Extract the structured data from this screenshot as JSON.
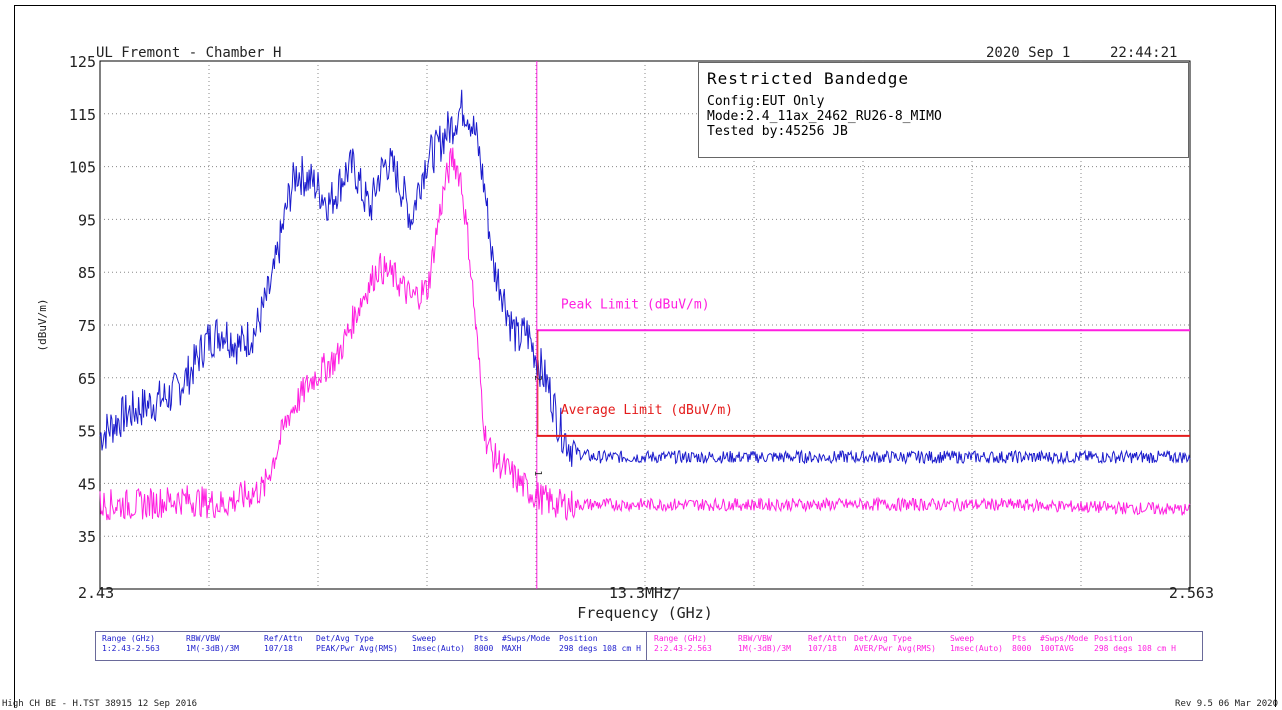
{
  "header": {
    "site": "UL Fremont - Chamber H",
    "date": "2020 Sep 1",
    "time": "22:44:21"
  },
  "info_box": {
    "title": "Restricted Bandedge",
    "lines": [
      "Config:EUT Only",
      "Mode:2.4_11ax_2462_RU26-8_MIMO",
      "Tested by:45256 JB"
    ]
  },
  "chart_data": {
    "type": "line",
    "title": "",
    "xlabel": "Frequency (GHz)",
    "ylabel": "(dBuV/m)",
    "xlim": [
      2.43,
      2.563
    ],
    "ylim": [
      25,
      125
    ],
    "x_tick_labels": {
      "left": "2.43",
      "center": "13.3MHz/",
      "right": "2.563"
    },
    "y_ticks": [
      125,
      115,
      105,
      95,
      85,
      75,
      65,
      55,
      45,
      35
    ],
    "grid": true,
    "colors": {
      "peak": "#1c1ccc",
      "average": "#ff1fe0",
      "peak_limit": "#ff1fe0",
      "average_limit": "#e41b1b",
      "marker_line": "#ff1fe0"
    },
    "marker_x": 2.4833,
    "marker_labels": [
      "2",
      "1"
    ],
    "limits": [
      {
        "name": "Peak Limit (dBuV/m)",
        "x": [
          2.4833,
          2.563
        ],
        "y": 74
      },
      {
        "name": "Average Limit (dBuV/m)",
        "x": [
          2.4833,
          2.563
        ],
        "y": 54
      }
    ],
    "series": [
      {
        "x": [
          2.43,
          2.433,
          2.436,
          2.439,
          2.441,
          2.443,
          2.445,
          2.447,
          2.449,
          2.451,
          2.453,
          2.454,
          2.456,
          2.458,
          2.459,
          2.46,
          2.461,
          2.462,
          2.463,
          2.464,
          2.465,
          2.466,
          2.467,
          2.468,
          2.469,
          2.47,
          2.471,
          2.472,
          2.473,
          2.474,
          2.4745,
          2.475,
          2.476,
          2.477,
          2.478,
          2.479,
          2.48,
          2.481,
          2.482,
          2.483,
          2.484,
          2.485,
          2.486,
          2.487,
          2.488,
          2.49,
          2.5,
          2.52,
          2.54,
          2.563
        ],
        "values": [
          54,
          58,
          60,
          62,
          66,
          72,
          74,
          71,
          74,
          83,
          99,
          104,
          102,
          98,
          101,
          104,
          105,
          100,
          97,
          103,
          106,
          104,
          100,
          95,
          102,
          107,
          108,
          111,
          113,
          116,
          116,
          115,
          110,
          100,
          86,
          82,
          76,
          72,
          74,
          70,
          66,
          62,
          56,
          53,
          51,
          50,
          50,
          50,
          50,
          50
        ]
      },
      {
        "x": [
          2.43,
          2.435,
          2.44,
          2.445,
          2.45,
          2.453,
          2.456,
          2.459,
          2.462,
          2.464,
          2.466,
          2.468,
          2.47,
          2.471,
          2.472,
          2.473,
          2.474,
          2.475,
          2.476,
          2.477,
          2.478,
          2.48,
          2.482,
          2.484,
          2.486,
          2.488,
          2.49,
          2.5,
          2.52,
          2.54,
          2.563
        ],
        "values": [
          41,
          41,
          42,
          41,
          44,
          58,
          65,
          69,
          80,
          86,
          84,
          80,
          82,
          92,
          101,
          107,
          103,
          90,
          72,
          54,
          50,
          47,
          44,
          42,
          41,
          41,
          41,
          41,
          41,
          41,
          40
        ]
      }
    ]
  },
  "settings_table": {
    "left": {
      "range_label": "Range (GHz)",
      "range_value": "1:2.43-2.563",
      "rbw_label": "RBW/VBW",
      "rbw_value": "1M(-3dB)/3M",
      "ref_label": "Ref/Attn",
      "ref_value": "107/18",
      "det_label": "Det/Avg Type",
      "det_value": "PEAK/Pwr Avg(RMS)",
      "sweep_label": "Sweep",
      "sweep_value": "1msec(Auto)",
      "pts_label": "Pts",
      "pts_value": "8000",
      "swps_label": "#Swps/Mode",
      "swps_value": "MAXH",
      "pos_label": "Position",
      "pos_value": "298 degs 108 cm H"
    },
    "right": {
      "range_label": "Range (GHz)",
      "range_value": "2:2.43-2.563",
      "rbw_label": "RBW/VBW",
      "rbw_value": "1M(-3dB)/3M",
      "ref_label": "Ref/Attn",
      "ref_value": "107/18",
      "det_label": "Det/Avg Type",
      "det_value": "AVER/Pwr Avg(RMS)",
      "sweep_label": "Sweep",
      "sweep_value": "1msec(Auto)",
      "pts_label": "Pts",
      "pts_value": "8000",
      "swps_label": "#Swps/Mode",
      "swps_value": "100TAVG",
      "pos_label": "Position",
      "pos_value": "298 degs 108 cm H"
    }
  },
  "footer": {
    "left": "High CH BE - H.TST 38915 12 Sep 2016",
    "right": "Rev 9.5 06 Mar 2020"
  }
}
